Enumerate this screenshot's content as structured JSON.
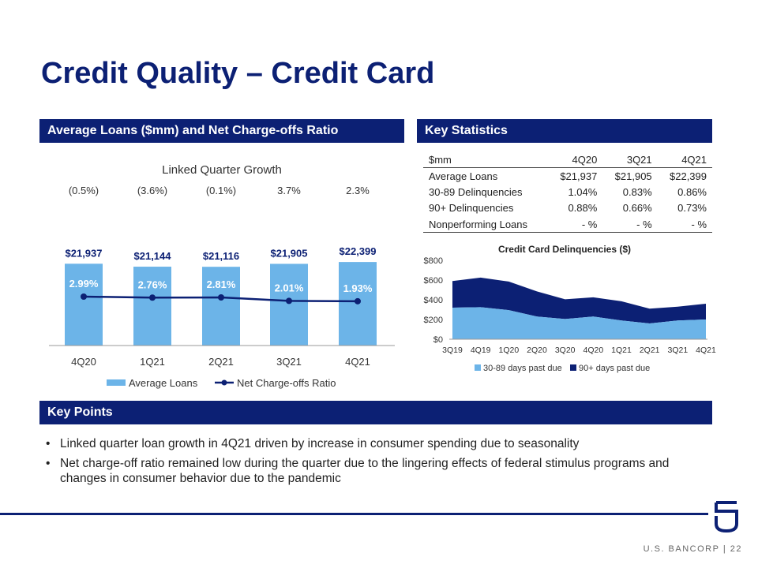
{
  "title": "Credit Quality – Credit Card",
  "sections": {
    "left": "Average Loans ($mm) and Net Charge-offs Ratio",
    "right": "Key Statistics",
    "points": "Key Points"
  },
  "chart_data": [
    {
      "type": "bar",
      "title": "Linked Quarter Growth",
      "categories": [
        "4Q20",
        "1Q21",
        "2Q21",
        "3Q21",
        "4Q21"
      ],
      "growth_labels": [
        "(0.5%)",
        "(3.6%)",
        "(0.1%)",
        "3.7%",
        "2.3%"
      ],
      "series": [
        {
          "name": "Average Loans",
          "type": "bar",
          "values": [
            21937,
            21144,
            21116,
            21905,
            22399
          ],
          "labels": [
            "$21,937",
            "$21,144",
            "$21,116",
            "$21,905",
            "$22,399"
          ],
          "color": "#6cb4e8"
        },
        {
          "name": "Net Charge-offs Ratio",
          "type": "line",
          "values": [
            2.99,
            2.76,
            2.81,
            2.01,
            1.93
          ],
          "labels": [
            "2.99%",
            "2.76%",
            "2.81%",
            "2.01%",
            "1.93%"
          ],
          "color": "#0c2074"
        }
      ],
      "legend": "bottom"
    },
    {
      "type": "area",
      "title": "Credit Card Delinquencies ($)",
      "categories": [
        "3Q19",
        "4Q19",
        "1Q20",
        "2Q20",
        "3Q20",
        "4Q20",
        "1Q21",
        "2Q21",
        "3Q21",
        "4Q21"
      ],
      "yticks": [
        "$0",
        "$200",
        "$400",
        "$600",
        "$800"
      ],
      "ylim": [
        0,
        800
      ],
      "series": [
        {
          "name": "30-89 days past due",
          "values": [
            320,
            325,
            295,
            230,
            205,
            230,
            190,
            160,
            190,
            200
          ],
          "color": "#6cb4e8"
        },
        {
          "name": "90+ days past due",
          "values": [
            270,
            300,
            290,
            255,
            200,
            195,
            195,
            150,
            140,
            160
          ],
          "color": "#0c2074"
        }
      ],
      "stacked": true,
      "legend": "bottom"
    }
  ],
  "stats_table": {
    "headers": [
      "$mm",
      "4Q20",
      "3Q21",
      "4Q21"
    ],
    "rows": [
      [
        "Average Loans",
        "$21,937",
        "$21,905",
        "$22,399"
      ],
      [
        "30-89 Delinquencies",
        "1.04%",
        "0.83%",
        "0.86%"
      ],
      [
        "90+ Delinquencies",
        "0.88%",
        "0.66%",
        "0.73%"
      ],
      [
        "Nonperforming Loans",
        "- %",
        "- %",
        "- %"
      ]
    ]
  },
  "key_points": [
    "Linked quarter loan growth in 4Q21 driven by increase in consumer spending due to seasonality",
    "Net charge-off ratio remained low during the quarter due to the lingering effects of federal stimulus programs and changes in consumer behavior due to the pandemic"
  ],
  "footer": {
    "company": "U.S. BANCORP",
    "separator": "|",
    "page": "22"
  },
  "colors": {
    "navy": "#0c2074",
    "light_blue": "#6cb4e8"
  },
  "icons": {
    "logo": "usbancorp-shield-logo"
  }
}
